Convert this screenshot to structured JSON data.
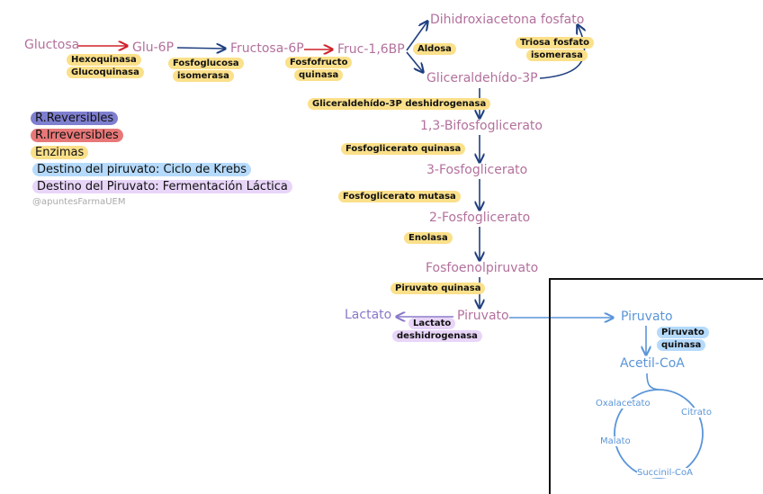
{
  "metabolites": {
    "glucosa": "Gluctosa",
    "glu6p": "Glu-6P",
    "fructosa6p": "Fructosa-6P",
    "fruc16bp": "Fruc-1,6BP",
    "dhap": "Dihidroxiacetona fosfato",
    "g3p": "Gliceraldehído-3P",
    "bpg13": "1,3-Bifosfoglicerato",
    "pg3": "3-Fosfoglicerato",
    "pg2": "2-Fosfoglicerato",
    "pep": "Fosfoenolpiruvato",
    "piruvato": "Piruvato",
    "lactato": "Lactato"
  },
  "enzymes": {
    "hexoquinasa": "Hexoquinasa",
    "glucoquinasa": "Glucoquinasa",
    "fosfoglucosa_1": "Fosfoglucosa",
    "fosfoglucosa_2": "isomerasa",
    "pfk_1": "Fosfofructo",
    "pfk_2": "quinasa",
    "aldosa": "Aldosa",
    "tpi_1": "Triosa fosfato",
    "tpi_2": "isomerasa",
    "g3pdh": "Gliceraldehído-3P deshidrogenasa",
    "pgk": "Fosfoglicerato quinasa",
    "pgm": "Fosfoglicerato mutasa",
    "enolasa": "Enolasa",
    "pk": "Piruvato quinasa",
    "ldh_1": "Lactato",
    "ldh_2": "deshidrogenasa"
  },
  "krebs": {
    "piruvato": "Piruvato",
    "enzyme_1": "Piruvato",
    "enzyme_2": "quinasa",
    "acetilcoa": "Acetil-CoA",
    "oxalacetato": "Oxalacetato",
    "citrato": "Citrato",
    "malato": "Malato",
    "succinilcoa": "Succinil-CoA"
  },
  "legend": [
    {
      "label": "R.Reversibles",
      "color": "#7f7fd0"
    },
    {
      "label": "R.Irreversibles",
      "color": "#e87878"
    },
    {
      "label": "Enzimas",
      "color": "#fbe08a"
    },
    {
      "label": "Destino del piruvato: Ciclo de Krebs",
      "color": "#a8d4fa"
    },
    {
      "label": "Destino del Piruvato: Fermentación Láctica",
      "color": "#e8d5f8"
    }
  ],
  "watermark": "@apuntesFarmaUEM",
  "colors": {
    "reversible": "#1f3f7f",
    "irreversible": "#d0202a",
    "krebs": "#5a95d8",
    "metabolite": "#b3709c",
    "lactato": "#8a78c8"
  }
}
